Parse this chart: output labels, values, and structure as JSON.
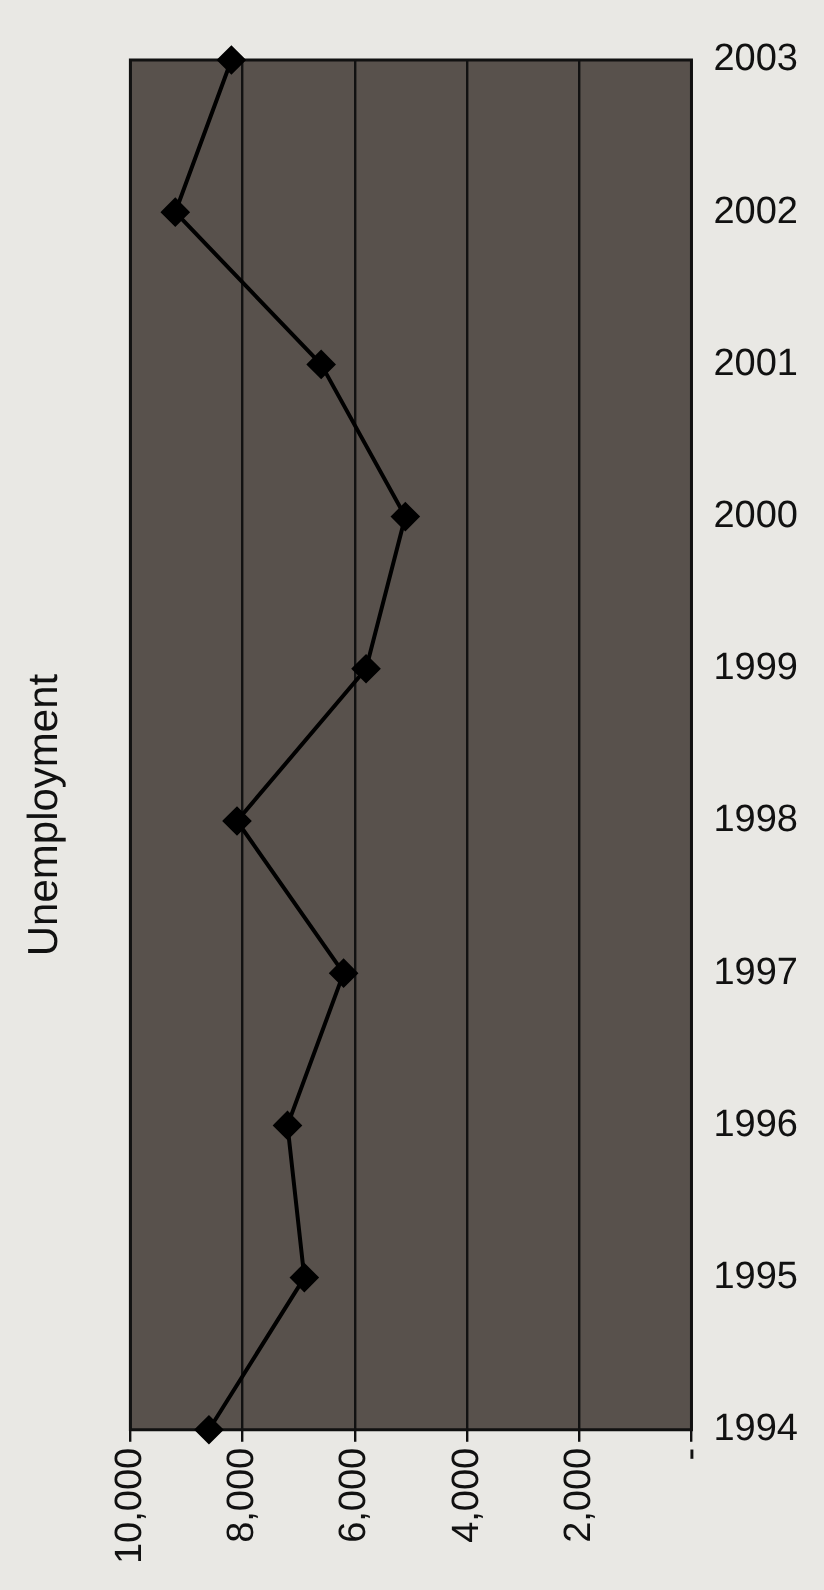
{
  "chart_data": {
    "type": "line",
    "title": "Unemployment",
    "orientation": "horizontal",
    "categories": [
      "2003",
      "2002",
      "2001",
      "2000",
      "1999",
      "1998",
      "1997",
      "1996",
      "1995",
      "1994"
    ],
    "series": [
      {
        "color": "#000000",
        "values": [
          8200,
          9200,
          6600,
          5100,
          5800,
          8100,
          6200,
          7200,
          6900,
          8600
        ]
      }
    ],
    "xlim": [
      10000,
      0
    ],
    "xticks": [
      {
        "value": 0,
        "label": "-"
      },
      {
        "value": 2000,
        "label": "2,000"
      },
      {
        "value": 4000,
        "label": "4,000"
      },
      {
        "value": 6000,
        "label": "6,000"
      },
      {
        "value": 8000,
        "label": "8,000"
      },
      {
        "value": 10000,
        "label": "10,000"
      }
    ],
    "grid": "x",
    "legend": false,
    "marker": "diamond",
    "line_style": "solid"
  }
}
